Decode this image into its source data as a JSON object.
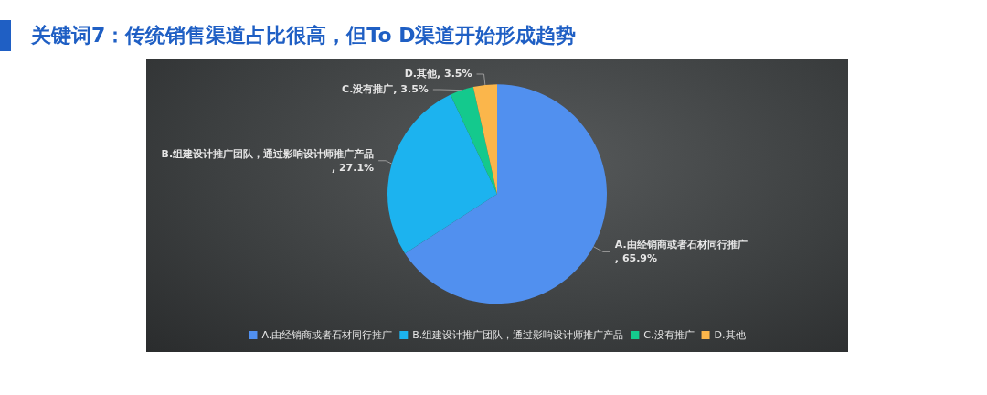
{
  "chart_data": {
    "type": "pie",
    "title": "关键词7：传统销售渠道占比很高，但To D渠道开始形成趋势",
    "categories": [
      "A.由经销商或者石材同行推广",
      "B.组建设计推广团队，通过影响设计师推广产品",
      "C.没有推广",
      "D.其他"
    ],
    "values": [
      65.9,
      27.1,
      3.5,
      3.5
    ],
    "colors": [
      "#5190ef",
      "#1cb3ef",
      "#14c98d",
      "#fbb64b"
    ],
    "value_labels": [
      ", 65.9%",
      ", 27.1%",
      ", 3.5%",
      ", 3.5%"
    ],
    "legend": "bottom"
  }
}
